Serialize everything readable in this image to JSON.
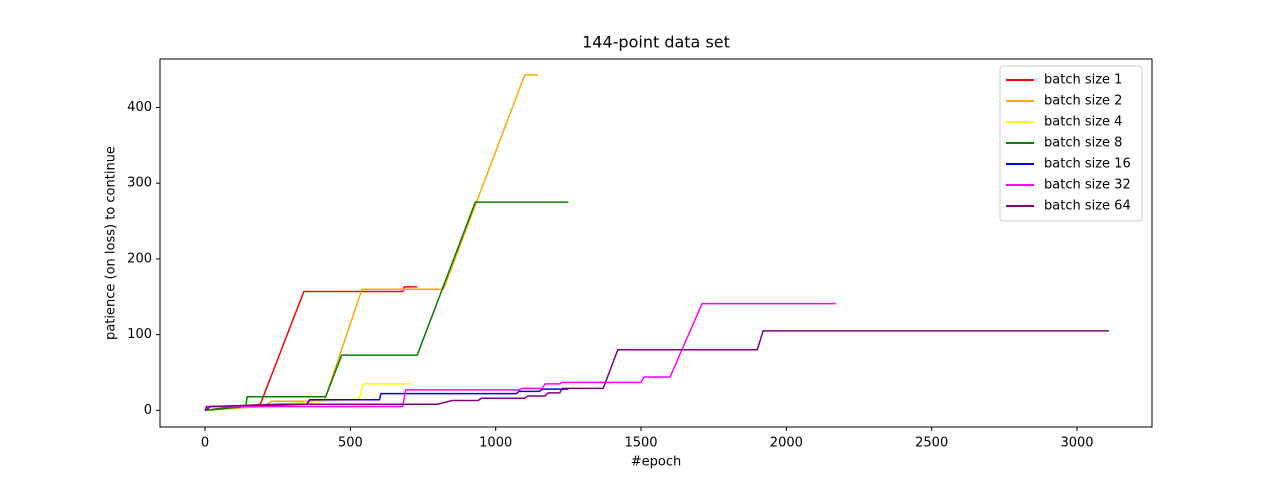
{
  "chart_data": {
    "type": "line",
    "title": "144-point data set",
    "xlabel": "#epoch",
    "ylabel": "patience (on loss) to continue",
    "xlim": [
      -155,
      3258
    ],
    "ylim": [
      -22,
      464
    ],
    "xticks": [
      0,
      500,
      1000,
      1500,
      2000,
      2500,
      3000
    ],
    "yticks": [
      0,
      100,
      200,
      300,
      400
    ],
    "legend": "upper right",
    "series": [
      {
        "name": "batch size 1",
        "color": "#ff0000",
        "x": [
          0,
          100,
          190,
          340,
          680,
          685,
          730
        ],
        "values": [
          0,
          5,
          8,
          157,
          157,
          163,
          163
        ]
      },
      {
        "name": "batch size 2",
        "color": "#ffa500",
        "x": [
          0,
          200,
          230,
          410,
          540,
          820,
          1100,
          1145
        ],
        "values": [
          0,
          5,
          12,
          12,
          160,
          160,
          443,
          443
        ]
      },
      {
        "name": "batch size 4",
        "color": "#ffff00",
        "x": [
          0,
          250,
          530,
          545,
          705
        ],
        "values": [
          0,
          8,
          15,
          35,
          35
        ]
      },
      {
        "name": "batch size 8",
        "color": "#008000",
        "x": [
          0,
          140,
          145,
          415,
          470,
          730,
          930,
          1250
        ],
        "values": [
          0,
          5,
          18,
          18,
          73,
          73,
          275,
          275
        ]
      },
      {
        "name": "batch size 16",
        "color": "#0000ff",
        "x": [
          0,
          5,
          350,
          360,
          600,
          605,
          1070,
          1080,
          1150,
          1160,
          1250
        ],
        "values": [
          0,
          5,
          8,
          14,
          14,
          22,
          22,
          25,
          25,
          28,
          28
        ]
      },
      {
        "name": "batch size 32",
        "color": "#ff00ff",
        "x": [
          0,
          10,
          680,
          690,
          1080,
          1090,
          1160,
          1170,
          1220,
          1230,
          1500,
          1510,
          1600,
          1710,
          2170
        ],
        "values": [
          0,
          5,
          5,
          27,
          27,
          29,
          29,
          35,
          35,
          37,
          37,
          44,
          44,
          141,
          141
        ]
      },
      {
        "name": "batch size 64",
        "color": "#800080",
        "x": [
          0,
          20,
          100,
          250,
          800,
          820,
          850,
          940,
          950,
          1100,
          1110,
          1170,
          1180,
          1220,
          1230,
          1370,
          1420,
          1900,
          1920,
          3110
        ],
        "values": [
          0,
          5,
          6,
          8,
          8,
          10,
          13,
          13,
          16,
          16,
          19,
          19,
          23,
          23,
          29,
          29,
          80,
          80,
          105,
          105
        ]
      }
    ]
  }
}
